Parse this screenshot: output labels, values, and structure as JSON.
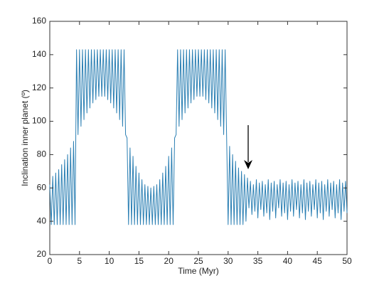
{
  "chart_data": {
    "type": "line",
    "xlabel": "Time (Myr)",
    "ylabel": "Inclination inner planet (º)",
    "color": "#2b7fb3",
    "xlim": [
      0,
      50
    ],
    "xticks": [
      0,
      5,
      10,
      15,
      20,
      25,
      30,
      35,
      40,
      45,
      50
    ],
    "ylim": [
      20,
      160
    ],
    "yticks": [
      20,
      40,
      60,
      80,
      100,
      120,
      140,
      160
    ],
    "x": [
      0,
      0.25,
      0.5,
      0.75,
      1,
      1.25,
      1.5,
      1.75,
      2,
      2.25,
      2.5,
      2.75,
      3,
      3.25,
      3.5,
      3.75,
      4,
      4.25,
      4.5,
      4.75,
      5,
      5.25,
      5.5,
      5.75,
      6,
      6.25,
      6.5,
      6.75,
      7,
      7.25,
      7.5,
      7.75,
      8,
      8.25,
      8.5,
      8.75,
      9,
      9.25,
      9.5,
      9.75,
      10,
      10.25,
      10.5,
      10.75,
      11,
      11.25,
      11.5,
      11.75,
      12,
      12.25,
      12.5,
      12.75,
      13,
      13.25,
      13.5,
      13.75,
      14,
      14.25,
      14.5,
      14.75,
      15,
      15.25,
      15.5,
      15.75,
      16,
      16.25,
      16.5,
      16.75,
      17,
      17.25,
      17.5,
      17.75,
      18,
      18.25,
      18.5,
      18.75,
      19,
      19.25,
      19.5,
      19.75,
      20,
      20.25,
      20.5,
      20.75,
      21,
      21.25,
      21.5,
      21.75,
      22,
      22.25,
      22.5,
      22.75,
      23,
      23.25,
      23.5,
      23.75,
      24,
      24.25,
      24.5,
      24.75,
      25,
      25.25,
      25.5,
      25.75,
      26,
      26.25,
      26.5,
      26.75,
      27,
      27.25,
      27.5,
      27.75,
      28,
      28.25,
      28.5,
      28.75,
      29,
      29.25,
      29.5,
      29.75,
      30,
      30.25,
      30.5,
      30.75,
      31,
      31.25,
      31.5,
      31.75,
      32,
      32.25,
      32.5,
      32.75,
      33,
      33.25,
      33.5,
      33.75,
      34,
      34.25,
      34.5,
      34.75,
      35,
      35.25,
      35.5,
      35.75,
      36,
      36.25,
      36.5,
      36.75,
      37,
      37.25,
      37.5,
      37.75,
      38,
      38.25,
      38.5,
      38.75,
      39,
      39.25,
      39.5,
      39.75,
      40,
      40.25,
      40.5,
      40.75,
      41,
      41.25,
      41.5,
      41.75,
      42,
      42.25,
      42.5,
      42.75,
      43,
      43.25,
      43.5,
      43.75,
      44,
      44.25,
      44.5,
      44.75,
      45,
      45.25,
      45.5,
      45.75,
      46,
      46.25,
      46.5,
      46.75,
      47,
      47.25,
      47.5,
      47.75,
      48,
      48.25,
      48.5,
      48.75,
      49,
      49.25,
      49.5,
      49.75,
      50
    ],
    "values": [
      62,
      38,
      67,
      38,
      69,
      38,
      71,
      38,
      74,
      38,
      77,
      38,
      80,
      38,
      84,
      38,
      88,
      38,
      143,
      92,
      143,
      97,
      143,
      101,
      143,
      105,
      143,
      108,
      143,
      111,
      143,
      113,
      143,
      115,
      143,
      115,
      143,
      115,
      143,
      113,
      143,
      111,
      143,
      108,
      143,
      105,
      143,
      101,
      143,
      97,
      143,
      92,
      90,
      38,
      84,
      38,
      79,
      38,
      73,
      38,
      69,
      38,
      65,
      38,
      62,
      38,
      61,
      38,
      60,
      38,
      61,
      38,
      62,
      38,
      65,
      38,
      69,
      38,
      73,
      38,
      79,
      38,
      84,
      38,
      90,
      92,
      143,
      97,
      143,
      101,
      143,
      105,
      143,
      108,
      143,
      111,
      143,
      113,
      143,
      115,
      143,
      115,
      143,
      115,
      143,
      113,
      143,
      111,
      143,
      108,
      143,
      105,
      143,
      101,
      143,
      97,
      143,
      92,
      143,
      90,
      38,
      85,
      38,
      80,
      38,
      76,
      38,
      72,
      38,
      70,
      38,
      68,
      40,
      66,
      48,
      64,
      44,
      62,
      46,
      65,
      42,
      63,
      47,
      64,
      43,
      62,
      45,
      65,
      41,
      63,
      46,
      64,
      42,
      62,
      48,
      65,
      43,
      63,
      45,
      64,
      41,
      62,
      46,
      65,
      43,
      63,
      47,
      64,
      42,
      62,
      45,
      65,
      41,
      63,
      46,
      64,
      43,
      62,
      47,
      65,
      42,
      63,
      45,
      64,
      41,
      62,
      46,
      65,
      43,
      63,
      47,
      64,
      42,
      62,
      45,
      65,
      41,
      63,
      46,
      64,
      45
    ]
  }
}
